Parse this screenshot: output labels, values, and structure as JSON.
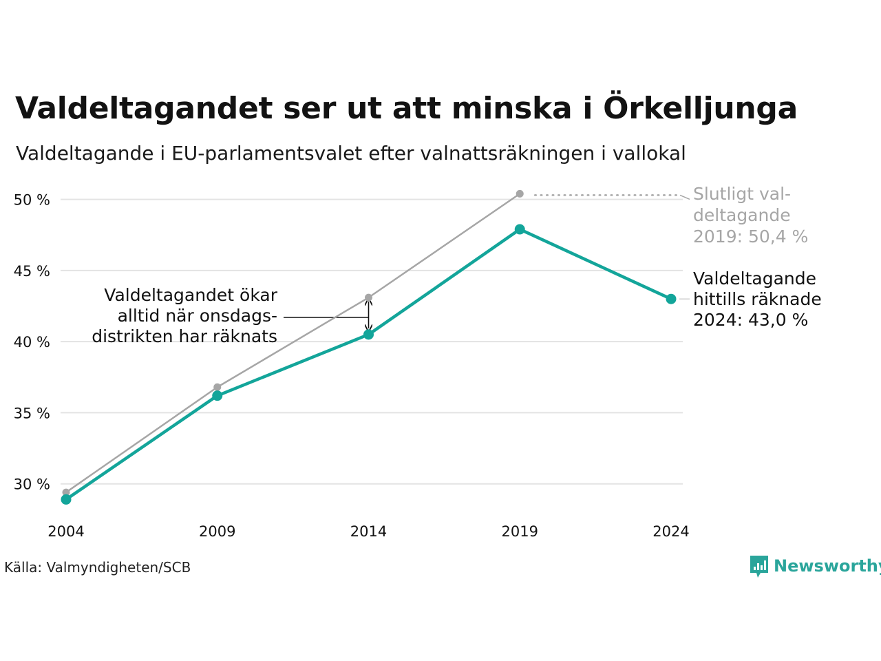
{
  "header": {
    "title": "Valdeltagandet ser ut att minska i Örkelljunga",
    "subtitle": "Valdeltagande i EU-parlamentsvalet efter valnattsräkningen i vallokal"
  },
  "footer": {
    "source": "Källa: Valmyndigheten/SCB",
    "brand": "Newsworthy"
  },
  "colors": {
    "counted": "#13a59a",
    "final": "#a6a6a6",
    "grid": "#e3e3e3",
    "text": "#111111",
    "brand": "#2aa59b"
  },
  "chart_data": {
    "type": "line",
    "x": [
      2004,
      2009,
      2014,
      2019,
      2024
    ],
    "x_tick_labels": [
      "2004",
      "2009",
      "2014",
      "2019",
      "2024"
    ],
    "y_ticks": [
      30,
      35,
      40,
      45,
      50
    ],
    "y_tick_labels": [
      "30 %",
      "35 %",
      "40 %",
      "45 %",
      "50 %"
    ],
    "ylim": [
      28,
      51
    ],
    "grid": true,
    "series": [
      {
        "key": "final",
        "values": [
          29.4,
          36.8,
          43.1,
          50.4,
          null
        ]
      },
      {
        "key": "counted",
        "values": [
          28.9,
          36.2,
          40.5,
          47.9,
          43.0
        ]
      }
    ],
    "annotations": {
      "final_label": [
        "Slutligt val-",
        "deltagande",
        "2019: 50,4 %"
      ],
      "counted_label": [
        "Valdeltagande",
        "hittills räknade",
        "2024: 43,0 %"
      ],
      "note": [
        "Valdeltagandet ökar",
        "alltid när onsdags-",
        "distrikten har räknats"
      ]
    }
  }
}
